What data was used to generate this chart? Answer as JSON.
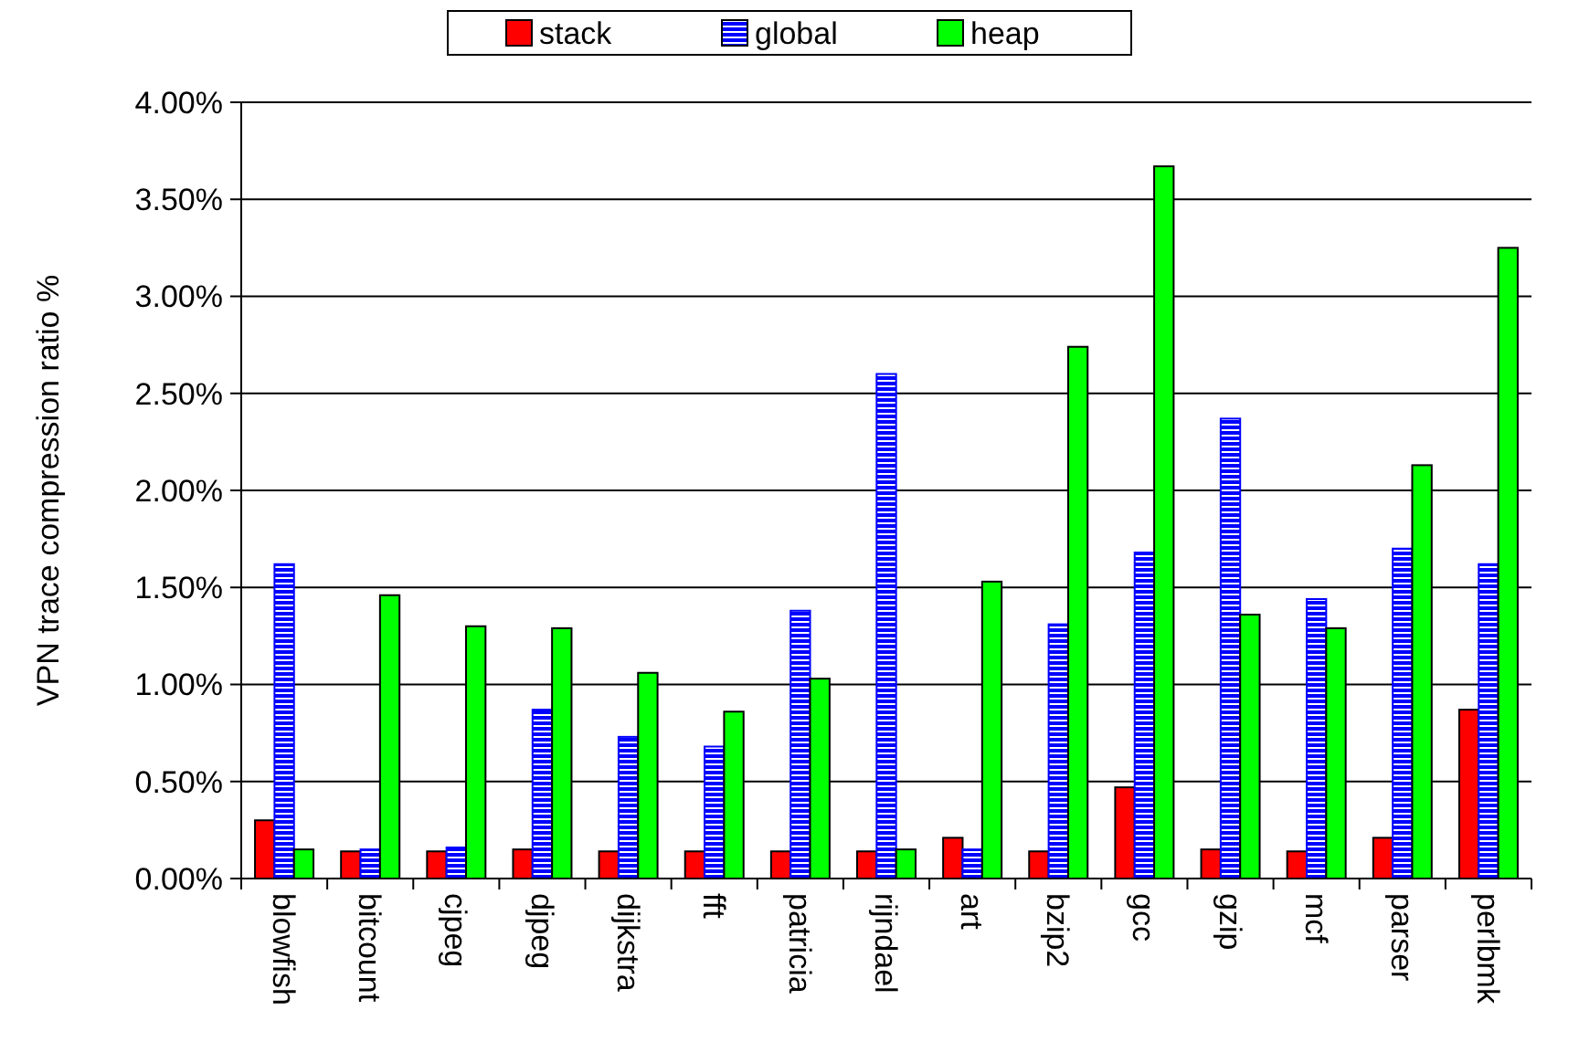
{
  "chart_data": {
    "type": "bar",
    "ylabel": "VPN trace compression ratio %",
    "categories": [
      "blowfish",
      "bitcount",
      "cjpeg",
      "djpeg",
      "dijkstra",
      "fft",
      "patricia",
      "rijndael",
      "art",
      "bzip2",
      "gcc",
      "gzip",
      "mcf",
      "parser",
      "perlbmk"
    ],
    "series": [
      {
        "name": "stack",
        "color": "#ff0000",
        "values": [
          0.3,
          0.14,
          0.14,
          0.15,
          0.14,
          0.14,
          0.14,
          0.14,
          0.21,
          0.14,
          0.47,
          0.15,
          0.14,
          0.21,
          0.87
        ]
      },
      {
        "name": "global",
        "color": "#0000ff",
        "values": [
          1.62,
          0.15,
          0.16,
          0.87,
          0.73,
          0.68,
          1.38,
          2.6,
          0.15,
          1.31,
          1.68,
          2.37,
          1.44,
          1.7,
          1.62
        ]
      },
      {
        "name": "heap",
        "color": "#00ff00",
        "values": [
          0.15,
          1.46,
          1.3,
          1.29,
          1.06,
          0.86,
          1.03,
          0.15,
          1.53,
          2.74,
          3.67,
          1.36,
          1.29,
          2.13,
          3.25
        ]
      }
    ],
    "ylim": [
      0,
      4
    ],
    "yticks": [
      {
        "value": 0,
        "label": "0.00%"
      },
      {
        "value": 0.5,
        "label": "0.50%"
      },
      {
        "value": 1,
        "label": "1.00%"
      },
      {
        "value": 1.5,
        "label": "1.50%"
      },
      {
        "value": 2,
        "label": "2.00%"
      },
      {
        "value": 2.5,
        "label": "2.50%"
      },
      {
        "value": 3,
        "label": "3.00%"
      },
      {
        "value": 3.5,
        "label": "3.50%"
      },
      {
        "value": 4,
        "label": "4.00%"
      }
    ],
    "grid": "y",
    "legend": "top"
  }
}
